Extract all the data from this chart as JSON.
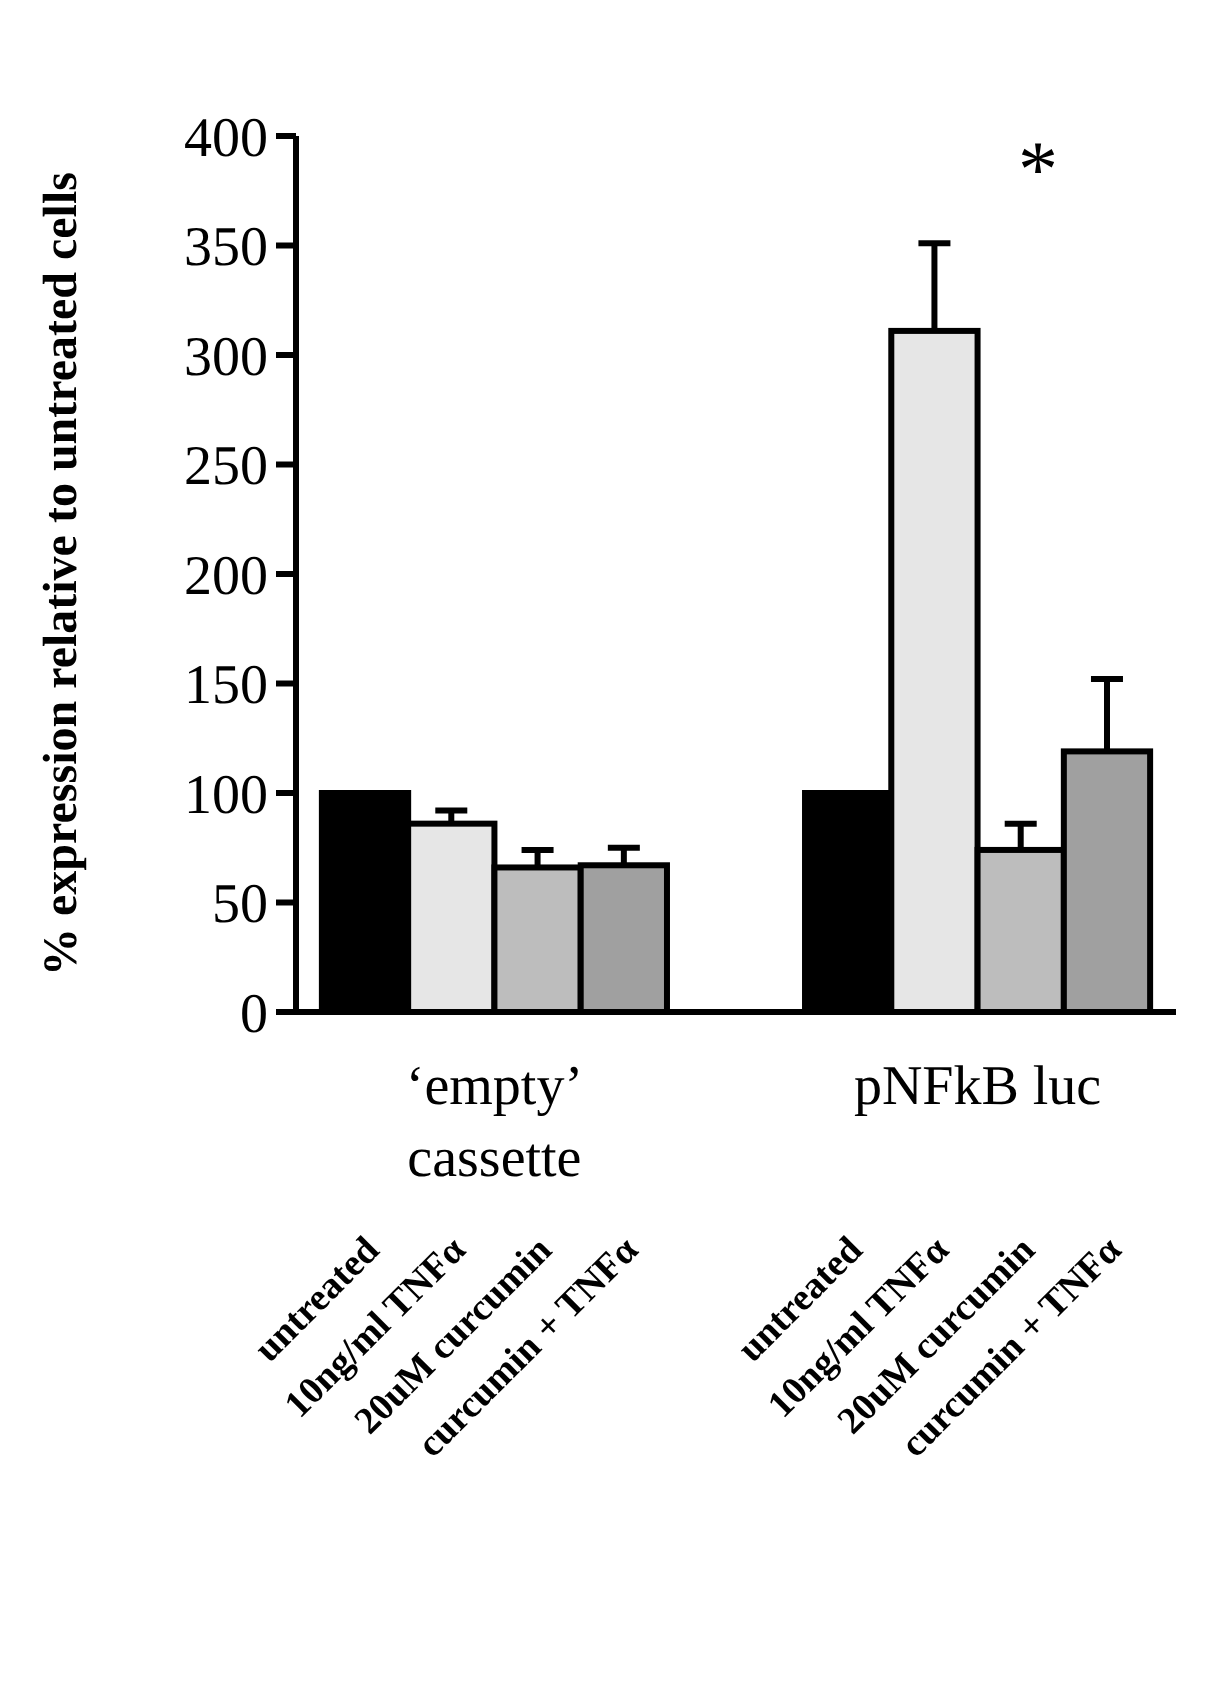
{
  "chart_data": {
    "type": "bar",
    "ylabel": "% expression relative to untreated cells",
    "categories": [
      "untreated",
      "10ng/ml TNFα",
      "20uM curcumin",
      "curcumin + TNFα",
      "untreated",
      "10ng/ml TNFα",
      "20uM curcumin",
      "curcumin + TNFα"
    ],
    "values": [
      100,
      86,
      66,
      67,
      100,
      311,
      74,
      119
    ],
    "colors": [
      "#000000",
      "#e6e6e6",
      "#bdbdbd",
      "#a0a0a0",
      "#000000",
      "#e6e6e6",
      "#bdbdbd",
      "#a0a0a0"
    ],
    "errors": [
      null,
      6,
      8,
      8,
      null,
      40,
      12,
      33
    ],
    "ylim": [
      0,
      400
    ],
    "yticks": [
      0,
      50,
      100,
      150,
      200,
      250,
      300,
      350,
      400
    ],
    "annotations": [
      "‘empty’ cassette",
      "pNFkB luc",
      "*"
    ]
  }
}
